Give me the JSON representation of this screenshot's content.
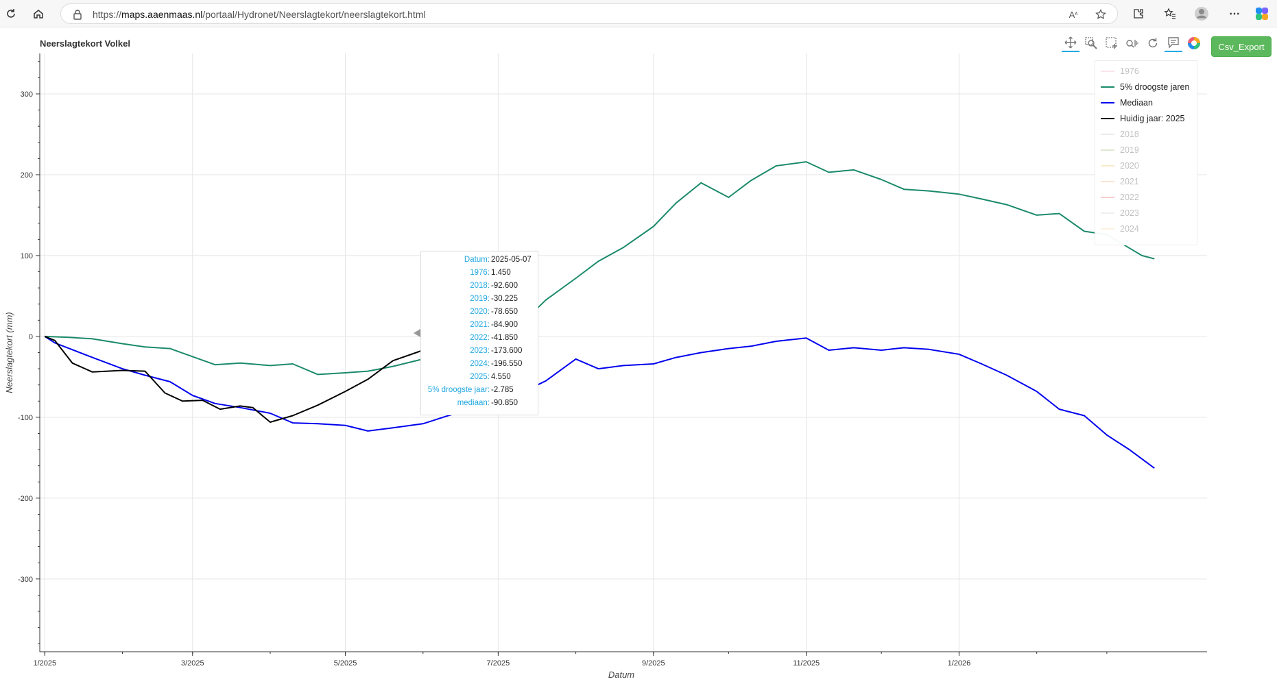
{
  "browser": {
    "url_prefix": "https://",
    "url_host": "maps.aaenmaas.nl",
    "url_path": "/portaal/Hydronet/Neerslagtekort/neerslagtekort.html"
  },
  "plot": {
    "title": "Neerslagtekort Volkel",
    "csv_button": "Csv_Export"
  },
  "legend": [
    {
      "label": "1976",
      "color": "#e9a3b6",
      "muted": true
    },
    {
      "label": "5% droogste jaren",
      "color": "#1a8a6a",
      "muted": false
    },
    {
      "label": "Mediaan",
      "color": "#0000ee",
      "muted": false
    },
    {
      "label": "Huidig jaar: 2025",
      "color": "#000000",
      "muted": false
    },
    {
      "label": "2018",
      "color": "#bbbbbb",
      "muted": true
    },
    {
      "label": "2019",
      "color": "#8ab35a",
      "muted": true
    },
    {
      "label": "2020",
      "color": "#f0b64a",
      "muted": true
    },
    {
      "label": "2021",
      "color": "#f4a05c",
      "muted": true
    },
    {
      "label": "2022",
      "color": "#e05555",
      "muted": true
    },
    {
      "label": "2023",
      "color": "#c8c8c8",
      "muted": true
    },
    {
      "label": "2024",
      "color": "#f2d78c",
      "muted": true
    }
  ],
  "tooltip": [
    {
      "key": "Datum:",
      "value": "2025-05-07"
    },
    {
      "key": "1976:",
      "value": "1.450"
    },
    {
      "key": "2018:",
      "value": "-92.600"
    },
    {
      "key": "2019:",
      "value": "-30.225"
    },
    {
      "key": "2020:",
      "value": "-78.650"
    },
    {
      "key": "2021:",
      "value": "-84.900"
    },
    {
      "key": "2022:",
      "value": "-41.850"
    },
    {
      "key": "2023:",
      "value": "-173.600"
    },
    {
      "key": "2024:",
      "value": "-196.550"
    },
    {
      "key": "2025:",
      "value": "4.550"
    },
    {
      "key": "5% droogste jaar:",
      "value": "-2.785"
    },
    {
      "key": "mediaan:",
      "value": "-90.850"
    }
  ],
  "chart_data": {
    "type": "line",
    "title": "Neerslagtekort Volkel",
    "xlabel": "Datum",
    "ylabel": "Neerslagtekort (mm)",
    "x_ticks": [
      "1/2025",
      "3/2025",
      "5/2025",
      "7/2025",
      "9/2025",
      "11/2025",
      "1/2026"
    ],
    "y_ticks": [
      300,
      200,
      100,
      0,
      -100,
      -200,
      -300
    ],
    "xlim": [
      "2024-12-30",
      "2026-04-10"
    ],
    "ylim": [
      -390,
      350
    ],
    "grid": true,
    "legend_position": "top-right",
    "series": [
      {
        "name": "5% droogste jaren",
        "color": "#1a8a6a",
        "points": [
          [
            "2025-01-01",
            0
          ],
          [
            "2025-01-10",
            -1
          ],
          [
            "2025-01-20",
            -3
          ],
          [
            "2025-02-01",
            -9
          ],
          [
            "2025-02-10",
            -13
          ],
          [
            "2025-02-20",
            -15
          ],
          [
            "2025-03-01",
            -25
          ],
          [
            "2025-03-10",
            -35
          ],
          [
            "2025-03-20",
            -33
          ],
          [
            "2025-04-01",
            -36
          ],
          [
            "2025-04-10",
            -34
          ],
          [
            "2025-04-20",
            -47
          ],
          [
            "2025-05-01",
            -45
          ],
          [
            "2025-05-10",
            -43
          ],
          [
            "2025-05-20",
            -37
          ],
          [
            "2025-06-01",
            -28
          ],
          [
            "2025-06-10",
            -14
          ],
          [
            "2025-06-20",
            -12
          ],
          [
            "2025-07-01",
            -3
          ],
          [
            "2025-07-10",
            15
          ],
          [
            "2025-07-20",
            45
          ],
          [
            "2025-08-01",
            72
          ],
          [
            "2025-08-10",
            93
          ],
          [
            "2025-08-20",
            110
          ],
          [
            "2025-09-01",
            136
          ],
          [
            "2025-09-10",
            165
          ],
          [
            "2025-09-20",
            190
          ],
          [
            "2025-10-01",
            172
          ],
          [
            "2025-10-10",
            193
          ],
          [
            "2025-10-20",
            211
          ],
          [
            "2025-11-01",
            216
          ],
          [
            "2025-11-10",
            203
          ],
          [
            "2025-11-20",
            206
          ],
          [
            "2025-12-01",
            194
          ],
          [
            "2025-12-10",
            182
          ],
          [
            "2025-12-20",
            180
          ],
          [
            "2026-01-01",
            176
          ],
          [
            "2026-01-10",
            170
          ],
          [
            "2026-01-20",
            163
          ],
          [
            "2026-02-01",
            150
          ],
          [
            "2026-02-10",
            152
          ],
          [
            "2026-02-20",
            130
          ],
          [
            "2026-03-01",
            126
          ],
          [
            "2026-03-15",
            100
          ],
          [
            "2026-03-20",
            96
          ]
        ]
      },
      {
        "name": "Mediaan",
        "color": "#0000ee",
        "points": [
          [
            "2025-01-01",
            0
          ],
          [
            "2025-01-05",
            -8
          ],
          [
            "2025-01-10",
            -14
          ],
          [
            "2025-01-20",
            -26
          ],
          [
            "2025-02-01",
            -40
          ],
          [
            "2025-02-10",
            -48
          ],
          [
            "2025-02-20",
            -56
          ],
          [
            "2025-03-01",
            -73
          ],
          [
            "2025-03-10",
            -83
          ],
          [
            "2025-03-20",
            -88
          ],
          [
            "2025-04-01",
            -95
          ],
          [
            "2025-04-10",
            -107
          ],
          [
            "2025-04-20",
            -108
          ],
          [
            "2025-05-01",
            -110
          ],
          [
            "2025-05-10",
            -117
          ],
          [
            "2025-05-20",
            -113
          ],
          [
            "2025-06-01",
            -108
          ],
          [
            "2025-06-10",
            -99
          ],
          [
            "2025-06-20",
            -90
          ],
          [
            "2025-07-01",
            -82
          ],
          [
            "2025-07-10",
            -70
          ],
          [
            "2025-07-20",
            -55
          ],
          [
            "2025-08-01",
            -28
          ],
          [
            "2025-08-10",
            -40
          ],
          [
            "2025-08-20",
            -36
          ],
          [
            "2025-09-01",
            -34
          ],
          [
            "2025-09-10",
            -26
          ],
          [
            "2025-09-20",
            -20
          ],
          [
            "2025-10-01",
            -15
          ],
          [
            "2025-10-10",
            -12
          ],
          [
            "2025-10-20",
            -6
          ],
          [
            "2025-11-01",
            -2
          ],
          [
            "2025-11-10",
            -17
          ],
          [
            "2025-11-20",
            -14
          ],
          [
            "2025-12-01",
            -17
          ],
          [
            "2025-12-10",
            -14
          ],
          [
            "2025-12-20",
            -16
          ],
          [
            "2026-01-01",
            -22
          ],
          [
            "2026-01-10",
            -34
          ],
          [
            "2026-01-20",
            -48
          ],
          [
            "2026-02-01",
            -68
          ],
          [
            "2026-02-10",
            -90
          ],
          [
            "2026-02-20",
            -98
          ],
          [
            "2026-03-01",
            -122
          ],
          [
            "2026-03-10",
            -140
          ],
          [
            "2026-03-20",
            -163
          ]
        ]
      },
      {
        "name": "Huidig jaar: 2025",
        "color": "#000000",
        "points": [
          [
            "2025-01-01",
            0
          ],
          [
            "2025-01-05",
            -5
          ],
          [
            "2025-01-12",
            -33
          ],
          [
            "2025-01-20",
            -44
          ],
          [
            "2025-02-01",
            -42
          ],
          [
            "2025-02-10",
            -43
          ],
          [
            "2025-02-18",
            -70
          ],
          [
            "2025-02-25",
            -80
          ],
          [
            "2025-03-05",
            -79
          ],
          [
            "2025-03-12",
            -90
          ],
          [
            "2025-03-20",
            -86
          ],
          [
            "2025-03-25",
            -88
          ],
          [
            "2025-04-01",
            -106
          ],
          [
            "2025-04-10",
            -98
          ],
          [
            "2025-04-20",
            -85
          ],
          [
            "2025-05-01",
            -68
          ],
          [
            "2025-05-10",
            -53
          ],
          [
            "2025-05-20",
            -30
          ],
          [
            "2025-06-01",
            -17
          ],
          [
            "2025-06-05",
            -30
          ],
          [
            "2025-06-10",
            -22
          ],
          [
            "2025-06-15",
            -36
          ],
          [
            "2025-06-20",
            -22
          ],
          [
            "2025-06-28",
            -5
          ],
          [
            "2025-07-05",
            4
          ]
        ]
      }
    ]
  }
}
